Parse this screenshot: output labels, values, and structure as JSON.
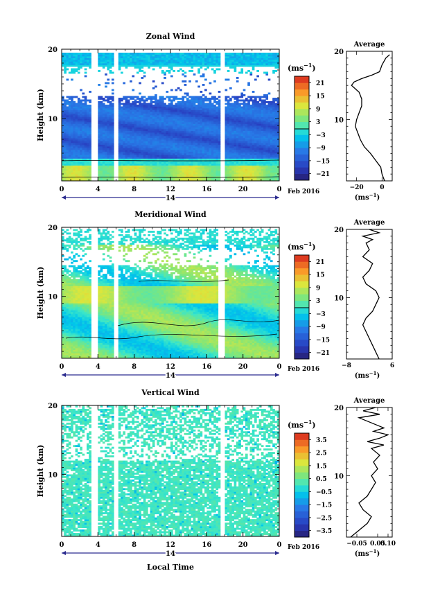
{
  "chart_data": [
    {
      "type": "heatmap",
      "title": "Zonal Wind",
      "ylabel": "Height (km)",
      "xlabel": "",
      "date_label": "Feb 2016",
      "day_label": "14",
      "unit_label": "(ms",
      "unit_exp": "−1",
      "x_ticks": [
        "0",
        "4",
        "8",
        "12",
        "16",
        "20",
        "0"
      ],
      "y_ticks": [
        "20",
        "10"
      ],
      "ylim": [
        1,
        20
      ],
      "colorbar_ticks": [
        "21",
        "15",
        "9",
        "3",
        "−3",
        "−9",
        "−15",
        "−21"
      ],
      "colorbar_range": [
        -24,
        24
      ],
      "gaps_hours": [
        [
          3.3,
          4.1
        ],
        [
          5.8,
          6.3
        ],
        [
          17.5,
          18.0
        ]
      ],
      "average": {
        "title": "Average",
        "x_ticks": [
          "−20",
          "0"
        ],
        "y_ticks": [
          "20",
          "10"
        ],
        "unit_label": "(ms",
        "unit_exp": "−1",
        "xlim": [
          -28,
          8
        ],
        "profile": [
          [
            1,
            2
          ],
          [
            2,
            0
          ],
          [
            3,
            -1
          ],
          [
            4,
            -5
          ],
          [
            5,
            -9
          ],
          [
            6,
            -14
          ],
          [
            7,
            -17
          ],
          [
            8,
            -19
          ],
          [
            9,
            -21
          ],
          [
            10,
            -20
          ],
          [
            11,
            -18
          ],
          [
            12,
            -16
          ],
          [
            13,
            -16
          ],
          [
            14,
            -18
          ],
          [
            14.5,
            -21
          ],
          [
            15,
            -24
          ],
          [
            15.5,
            -22
          ],
          [
            16,
            -16
          ],
          [
            16.5,
            -8
          ],
          [
            17,
            -2
          ],
          [
            18,
            0
          ],
          [
            19,
            3
          ],
          [
            19.5,
            6
          ]
        ]
      }
    },
    {
      "type": "heatmap",
      "title": "Meridional Wind",
      "ylabel": "Height (km)",
      "xlabel": "",
      "date_label": "Feb 2016",
      "day_label": "14",
      "unit_label": "(ms",
      "unit_exp": "−1",
      "x_ticks": [
        "0",
        "4",
        "8",
        "12",
        "16",
        "20",
        "0"
      ],
      "y_ticks": [
        "20",
        "10"
      ],
      "ylim": [
        1,
        20
      ],
      "colorbar_ticks": [
        "21",
        "15",
        "9",
        "3",
        "−3",
        "−9",
        "−15",
        "−21"
      ],
      "colorbar_range": [
        -24,
        24
      ],
      "gaps_hours": [
        [
          3.3,
          4.1
        ],
        [
          5.8,
          6.3
        ],
        [
          17.3,
          18.0
        ]
      ],
      "average": {
        "title": "Average",
        "x_ticks": [
          "−8",
          "6"
        ],
        "y_ticks": [
          "20",
          "10"
        ],
        "unit_label": "(ms",
        "unit_exp": "−1",
        "xlim": [
          -8,
          6
        ],
        "profile": [
          [
            1,
            2
          ],
          [
            2,
            1
          ],
          [
            3,
            0
          ],
          [
            4,
            -1
          ],
          [
            5,
            -2
          ],
          [
            6,
            -3
          ],
          [
            7,
            -2
          ],
          [
            8,
            0
          ],
          [
            9,
            1
          ],
          [
            10,
            2
          ],
          [
            11,
            1
          ],
          [
            12,
            -2
          ],
          [
            13,
            -3
          ],
          [
            14,
            -1
          ],
          [
            15,
            0
          ],
          [
            16,
            -3
          ],
          [
            17,
            -1
          ],
          [
            18,
            -2
          ],
          [
            18.5,
            0
          ],
          [
            19,
            -3
          ],
          [
            19.5,
            2
          ],
          [
            20,
            -1
          ]
        ]
      }
    },
    {
      "type": "heatmap",
      "title": "Vertical Wind",
      "ylabel": "Height (km)",
      "xlabel": "Local Time",
      "date_label": "Feb 2016",
      "day_label": "14",
      "unit_label": "(ms",
      "unit_exp": "−1",
      "x_ticks": [
        "0",
        "4",
        "8",
        "12",
        "16",
        "20",
        "0"
      ],
      "y_ticks": [
        "20",
        "10"
      ],
      "ylim": [
        1,
        20
      ],
      "colorbar_ticks": [
        "3.5",
        "2.5",
        "1.5",
        "0.5",
        "−0.5",
        "−1.5",
        "−2.5",
        "−3.5"
      ],
      "colorbar_range": [
        -4,
        4
      ],
      "gaps_hours": [
        [
          3.3,
          4.1
        ],
        [
          5.8,
          6.3
        ],
        [
          17.5,
          18.0
        ]
      ],
      "average": {
        "title": "Average",
        "x_ticks": [
          "−0.05",
          "0.05",
          "0.10"
        ],
        "y_ticks": [
          "20",
          "10"
        ],
        "unit_label": "(ms",
        "unit_exp": "−1",
        "xlim": [
          -0.1,
          0.12
        ],
        "profile": [
          [
            1,
            -0.08
          ],
          [
            2,
            -0.04
          ],
          [
            3,
            0.0
          ],
          [
            4,
            0.02
          ],
          [
            5,
            -0.02
          ],
          [
            6,
            -0.04
          ],
          [
            7,
            0.0
          ],
          [
            8,
            0.02
          ],
          [
            9,
            0.04
          ],
          [
            10,
            0.02
          ],
          [
            11,
            0.05
          ],
          [
            12,
            0.03
          ],
          [
            13,
            0.06
          ],
          [
            14,
            0.02
          ],
          [
            14.5,
            0.08
          ],
          [
            15,
            0.0
          ],
          [
            15.5,
            0.06
          ],
          [
            16,
            0.1
          ],
          [
            16.5,
            0.03
          ],
          [
            17,
            0.08
          ],
          [
            18,
            0.0
          ],
          [
            18.5,
            -0.04
          ],
          [
            19,
            0.06
          ],
          [
            19.5,
            -0.02
          ],
          [
            20,
            0.04
          ]
        ]
      }
    }
  ]
}
